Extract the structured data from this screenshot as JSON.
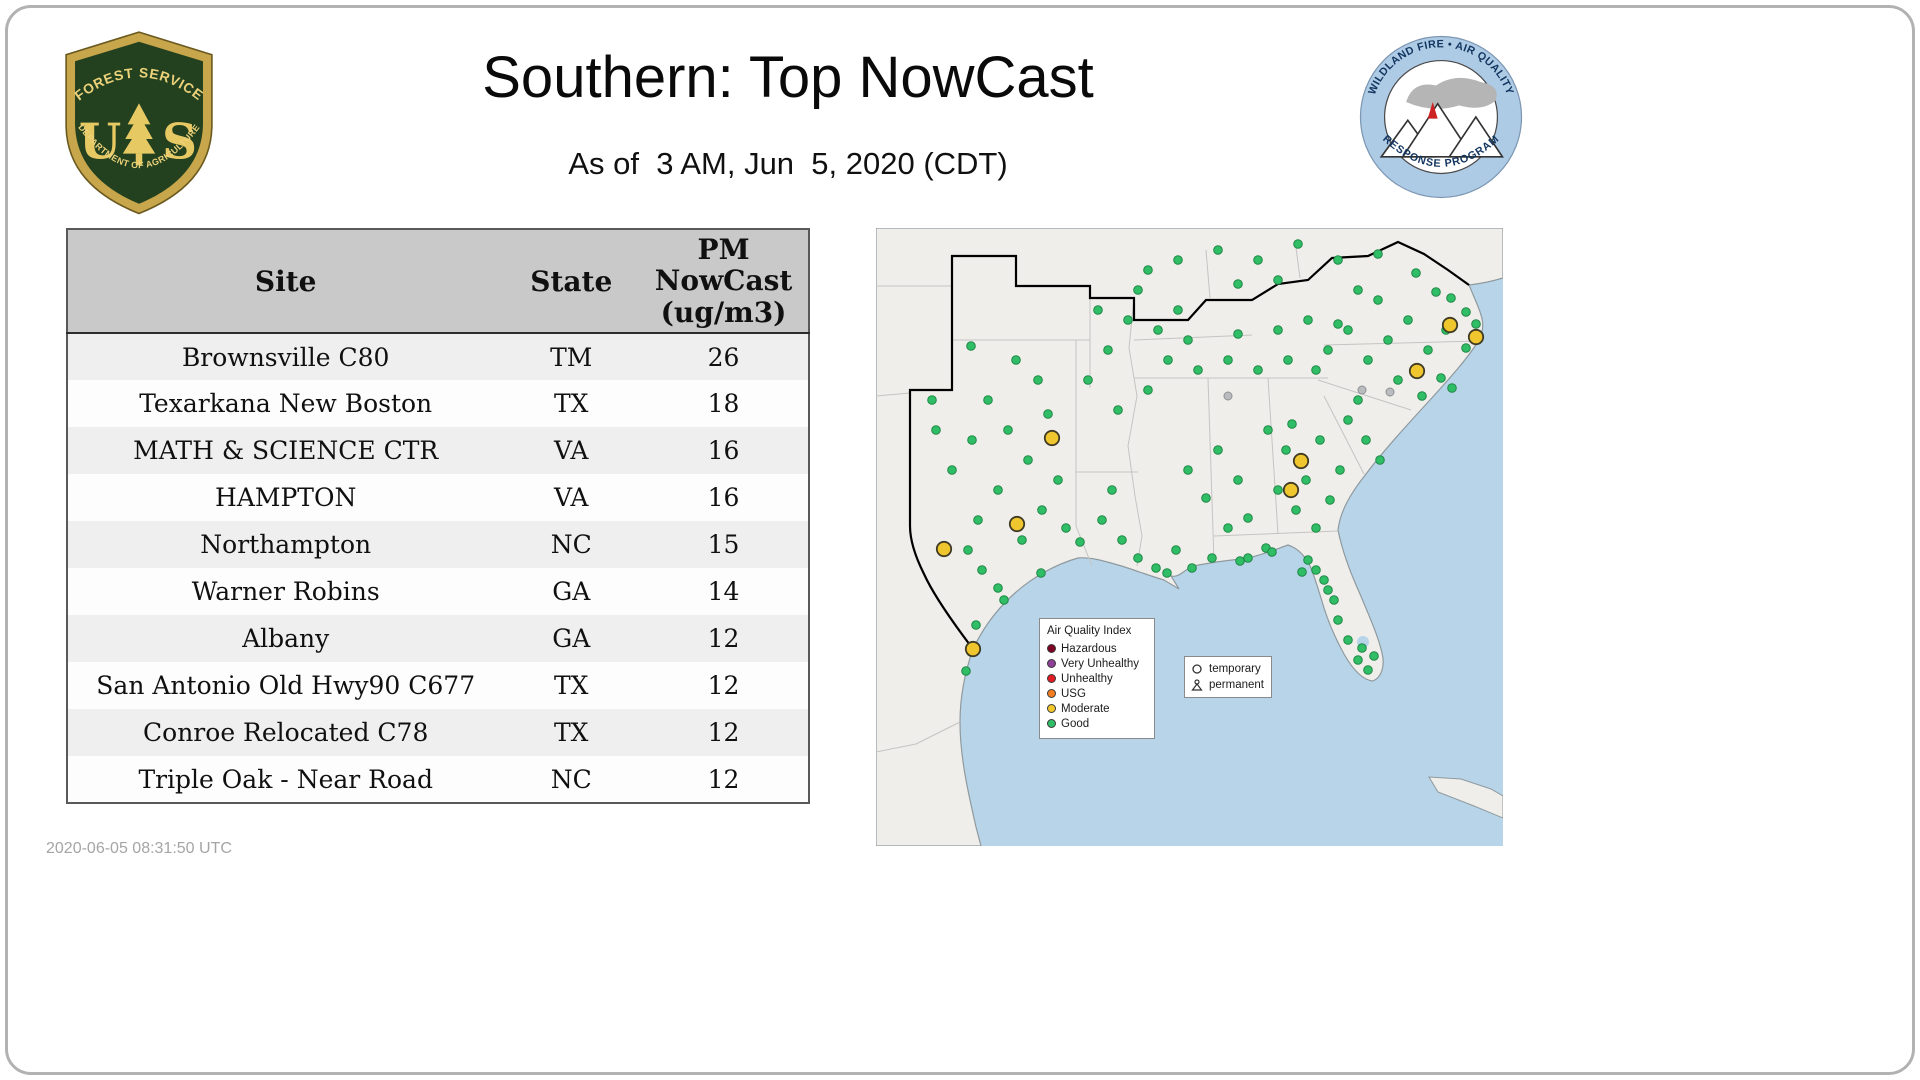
{
  "header": {
    "title": "Southern: Top NowCast",
    "subtitle": "As of  3 AM, Jun  5, 2020 (CDT)"
  },
  "logos": {
    "usfs": {
      "top": "FOREST SERVICE",
      "letter_u": "U",
      "letter_s": "S",
      "bottom": "DEPARTMENT OF AGRICULTURE"
    },
    "program": {
      "top": "WILDLAND FIRE • AIR QUALITY",
      "bottom": "RESPONSE PROGRAM"
    }
  },
  "table": {
    "columns": [
      "Site",
      "State",
      "PM\nNowCast\n(ug/m3)"
    ],
    "rows": [
      {
        "site": "Brownsville C80",
        "state": "TM",
        "value": "26"
      },
      {
        "site": "Texarkana New Boston",
        "state": "TX",
        "value": "18"
      },
      {
        "site": "MATH & SCIENCE CTR",
        "state": "VA",
        "value": "16"
      },
      {
        "site": "HAMPTON",
        "state": "VA",
        "value": "16"
      },
      {
        "site": "Northampton",
        "state": "NC",
        "value": "15"
      },
      {
        "site": "Warner Robins",
        "state": "GA",
        "value": "14"
      },
      {
        "site": "Albany",
        "state": "GA",
        "value": "12"
      },
      {
        "site": "San Antonio Old Hwy90 C677",
        "state": "TX",
        "value": "12"
      },
      {
        "site": "Conroe Relocated C78",
        "state": "TX",
        "value": "12"
      },
      {
        "site": "Triple Oak - Near Road",
        "state": "NC",
        "value": "12"
      }
    ]
  },
  "footer": {
    "timestamp": "2020-06-05 08:31:50 UTC"
  },
  "map": {
    "legend_title": "Air Quality Index",
    "legend_items": [
      {
        "label": "Hazardous",
        "color": "#7e0023"
      },
      {
        "label": "Very Unhealthy",
        "color": "#8f3f97"
      },
      {
        "label": "Unhealthy",
        "color": "#e41a24"
      },
      {
        "label": "USG",
        "color": "#f47d1f"
      },
      {
        "label": "Moderate",
        "color": "#f2c829"
      },
      {
        "label": "Good",
        "color": "#2fbe65"
      }
    ],
    "marker_legend": [
      {
        "symbol": "circle",
        "label": "temporary"
      },
      {
        "symbol": "person",
        "label": "permanent"
      }
    ],
    "colors": {
      "water": "#b8d4e8",
      "land": "#f0eeea",
      "good": "#2fbe65",
      "moderate": "#f0c62e",
      "inactive": "#b9bdc0"
    },
    "good_sites": [
      [
        95,
        118
      ],
      [
        140,
        132
      ],
      [
        162,
        152
      ],
      [
        112,
        172
      ],
      [
        172,
        186
      ],
      [
        132,
        202
      ],
      [
        96,
        212
      ],
      [
        152,
        232
      ],
      [
        182,
        252
      ],
      [
        122,
        262
      ],
      [
        102,
        292
      ],
      [
        166,
        282
      ],
      [
        190,
        300
      ],
      [
        146,
        312
      ],
      [
        204,
        314
      ],
      [
        60,
        202
      ],
      [
        76,
        242
      ],
      [
        56,
        172
      ],
      [
        92,
        322
      ],
      [
        106,
        342
      ],
      [
        122,
        360
      ],
      [
        128,
        372
      ],
      [
        165,
        345
      ],
      [
        100,
        397
      ],
      [
        95,
        424
      ],
      [
        90,
        443
      ],
      [
        226,
        292
      ],
      [
        246,
        312
      ],
      [
        262,
        330
      ],
      [
        280,
        340
      ],
      [
        300,
        322
      ],
      [
        236,
        262
      ],
      [
        212,
        152
      ],
      [
        232,
        122
      ],
      [
        252,
        92
      ],
      [
        222,
        82
      ],
      [
        262,
        62
      ],
      [
        282,
        102
      ],
      [
        302,
        82
      ],
      [
        242,
        182
      ],
      [
        272,
        162
      ],
      [
        312,
        242
      ],
      [
        330,
        270
      ],
      [
        352,
        300
      ],
      [
        342,
        222
      ],
      [
        362,
        252
      ],
      [
        372,
        290
      ],
      [
        336,
        330
      ],
      [
        364,
        333
      ],
      [
        390,
        320
      ],
      [
        292,
        132
      ],
      [
        322,
        142
      ],
      [
        352,
        132
      ],
      [
        382,
        142
      ],
      [
        412,
        132
      ],
      [
        440,
        142
      ],
      [
        312,
        112
      ],
      [
        362,
        106
      ],
      [
        402,
        102
      ],
      [
        432,
        92
      ],
      [
        462,
        96
      ],
      [
        392,
        202
      ],
      [
        410,
        222
      ],
      [
        430,
        252
      ],
      [
        402,
        262
      ],
      [
        420,
        282
      ],
      [
        440,
        300
      ],
      [
        454,
        272
      ],
      [
        416,
        196
      ],
      [
        444,
        212
      ],
      [
        464,
        242
      ],
      [
        472,
        192
      ],
      [
        490,
        212
      ],
      [
        504,
        232
      ],
      [
        482,
        172
      ],
      [
        452,
        122
      ],
      [
        472,
        102
      ],
      [
        492,
        132
      ],
      [
        512,
        112
      ],
      [
        532,
        92
      ],
      [
        552,
        122
      ],
      [
        570,
        102
      ],
      [
        590,
        84
      ],
      [
        560,
        64
      ],
      [
        542,
        142
      ],
      [
        565,
        150
      ],
      [
        590,
        120
      ],
      [
        522,
        152
      ],
      [
        502,
        72
      ],
      [
        482,
        62
      ],
      [
        600,
        96
      ],
      [
        576,
        160
      ],
      [
        546,
        168
      ],
      [
        540,
        45
      ],
      [
        575,
        70
      ],
      [
        302,
        32
      ],
      [
        342,
        22
      ],
      [
        382,
        32
      ],
      [
        422,
        16
      ],
      [
        272,
        42
      ],
      [
        462,
        32
      ],
      [
        502,
        26
      ],
      [
        362,
        56
      ],
      [
        402,
        52
      ],
      [
        432,
        332
      ],
      [
        448,
        352
      ],
      [
        458,
        372
      ],
      [
        462,
        392
      ],
      [
        472,
        412
      ],
      [
        482,
        432
      ],
      [
        492,
        442
      ],
      [
        440,
        342
      ],
      [
        426,
        344
      ],
      [
        498,
        428
      ],
      [
        486,
        420
      ],
      [
        452,
        362
      ],
      [
        396,
        324
      ],
      [
        372,
        330
      ],
      [
        316,
        340
      ],
      [
        291,
        345
      ]
    ],
    "inactive_sites": [
      [
        486,
        162
      ],
      [
        514,
        164
      ],
      [
        352,
        168
      ]
    ],
    "moderate_sites": [
      [
        574,
        97
      ],
      [
        600,
        109
      ],
      [
        541,
        143
      ],
      [
        425,
        233
      ],
      [
        415,
        262
      ],
      [
        176,
        210
      ],
      [
        141,
        296
      ],
      [
        68,
        321
      ],
      [
        97,
        421
      ]
    ]
  }
}
